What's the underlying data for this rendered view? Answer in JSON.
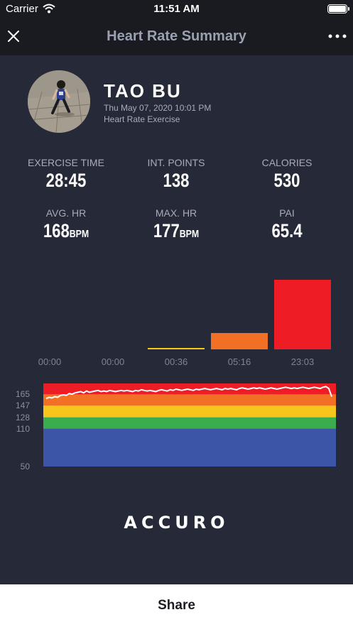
{
  "status_bar": {
    "carrier": "Carrier",
    "time": "11:51 AM"
  },
  "nav": {
    "title": "Heart Rate Summary"
  },
  "profile": {
    "name": "TAO BU",
    "date": "Thu May 07, 2020 10:01 PM",
    "type": "Heart Rate Exercise"
  },
  "stats": [
    {
      "label": "EXERCISE TIME",
      "value": "28:45",
      "unit": ""
    },
    {
      "label": "INT. POINTS",
      "value": "138",
      "unit": ""
    },
    {
      "label": "CALORIES",
      "value": "530",
      "unit": ""
    },
    {
      "label": "AVG. HR",
      "value": "168",
      "unit": "BPM"
    },
    {
      "label": "MAX. HR",
      "value": "177",
      "unit": "BPM"
    },
    {
      "label": "PAI",
      "value": "65.4",
      "unit": ""
    }
  ],
  "colors": {
    "zone1": "#3d55a6",
    "zone2": "#3cad4f",
    "zone3": "#f7c51b",
    "zone4": "#f26f26",
    "zone5": "#ee1d25",
    "background": "#262938"
  },
  "chart_data": [
    {
      "type": "bar",
      "categories": [
        "00:00",
        "00:00",
        "00:36",
        "05:16",
        "23:03"
      ],
      "values": [
        0,
        0,
        0.6,
        16.27,
        69.17
      ],
      "colors": [
        "#3d55a6",
        "#3cad4f",
        "#f7c51b",
        "#f26f26",
        "#ee1d25"
      ]
    },
    {
      "type": "line",
      "yticks": [
        "165",
        "147",
        "128",
        "110",
        "50"
      ],
      "zones": [
        50,
        110,
        128,
        147,
        165,
        182
      ],
      "ylim": [
        50,
        182
      ],
      "values": [
        158,
        160,
        159,
        161,
        160,
        163,
        164,
        163,
        166,
        165,
        167,
        168,
        169,
        167,
        170,
        168,
        169,
        170,
        171,
        169,
        170,
        169,
        171,
        170,
        169,
        170,
        171,
        170,
        171,
        170,
        169,
        171,
        170,
        172,
        171,
        170,
        171,
        170,
        169,
        171,
        172,
        171,
        170,
        172,
        171,
        173,
        172,
        171,
        172,
        173,
        172,
        171,
        173,
        172,
        173,
        174,
        173,
        172,
        173,
        174,
        173,
        172,
        174,
        173,
        174,
        173,
        172,
        174,
        175,
        174,
        173,
        174,
        175,
        174,
        175,
        174,
        173,
        174,
        175,
        174,
        173,
        174,
        175,
        176,
        175,
        174,
        175,
        174,
        175,
        176,
        175,
        174,
        175,
        176,
        175,
        174,
        176,
        177,
        174,
        161
      ]
    }
  ],
  "logo_text": "ACCURO",
  "footer": {
    "share_label": "Share"
  }
}
